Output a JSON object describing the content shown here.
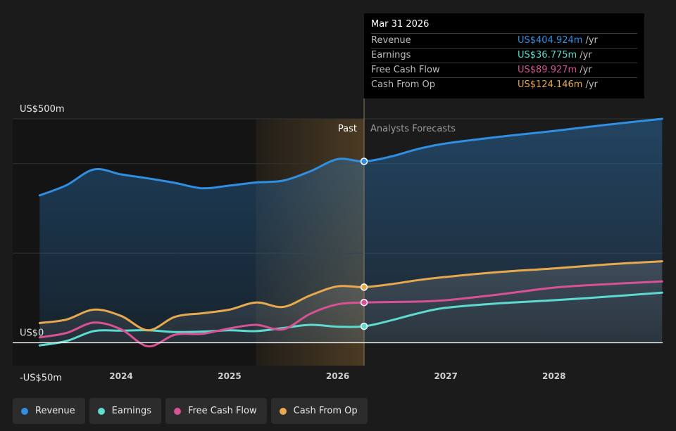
{
  "chart_data": {
    "type": "area",
    "x_unit": "date",
    "ylim": [
      -50,
      500
    ],
    "xlim": [
      "2023-04-01",
      "2028-12-31"
    ],
    "y_ticks": [
      {
        "value": 500,
        "label": "US$500m"
      },
      {
        "value": 0,
        "label": "US$0"
      },
      {
        "value": -50,
        "label": "-US$50m"
      }
    ],
    "x_ticks": [
      {
        "date": "2024-01-01",
        "label": "2024"
      },
      {
        "date": "2025-01-01",
        "label": "2025"
      },
      {
        "date": "2026-01-01",
        "label": "2026"
      },
      {
        "date": "2027-01-01",
        "label": "2027"
      },
      {
        "date": "2028-01-01",
        "label": "2028"
      }
    ],
    "past_label": "Past",
    "forecast_label": "Analysts Forecasts",
    "divider_date": "2026-03-31",
    "highlight_start": "2025-03-31",
    "series": [
      {
        "name": "Revenue",
        "color": "#2f8fe3",
        "points": [
          [
            "2023-04-01",
            329
          ],
          [
            "2023-07-01",
            352
          ],
          [
            "2023-10-01",
            387
          ],
          [
            "2024-01-01",
            376
          ],
          [
            "2024-04-01",
            367
          ],
          [
            "2024-07-01",
            357
          ],
          [
            "2024-10-01",
            345
          ],
          [
            "2025-01-01",
            351
          ],
          [
            "2025-04-01",
            358
          ],
          [
            "2025-07-01",
            362
          ],
          [
            "2025-10-01",
            383
          ],
          [
            "2026-01-01",
            410
          ],
          [
            "2026-03-31",
            405
          ],
          [
            "2026-07-01",
            416
          ],
          [
            "2026-10-01",
            433
          ],
          [
            "2027-01-01",
            445
          ],
          [
            "2027-07-01",
            460
          ],
          [
            "2028-01-01",
            473
          ],
          [
            "2028-07-01",
            487
          ],
          [
            "2028-12-31",
            500
          ]
        ]
      },
      {
        "name": "Earnings",
        "color": "#5ddbd0",
        "points": [
          [
            "2023-04-01",
            -6
          ],
          [
            "2023-07-01",
            4
          ],
          [
            "2023-10-01",
            26
          ],
          [
            "2024-01-01",
            27
          ],
          [
            "2024-04-01",
            28
          ],
          [
            "2024-07-01",
            24
          ],
          [
            "2024-10-01",
            25
          ],
          [
            "2025-01-01",
            28
          ],
          [
            "2025-04-01",
            26
          ],
          [
            "2025-07-01",
            33
          ],
          [
            "2025-10-01",
            40
          ],
          [
            "2026-01-01",
            36
          ],
          [
            "2026-03-31",
            36.775
          ],
          [
            "2026-07-01",
            50
          ],
          [
            "2026-10-01",
            66
          ],
          [
            "2027-01-01",
            78
          ],
          [
            "2027-07-01",
            88
          ],
          [
            "2028-01-01",
            95
          ],
          [
            "2028-07-01",
            103
          ],
          [
            "2028-12-31",
            112
          ]
        ]
      },
      {
        "name": "Free Cash Flow",
        "color": "#d95195",
        "points": [
          [
            "2023-04-01",
            12
          ],
          [
            "2023-07-01",
            22
          ],
          [
            "2023-10-01",
            45
          ],
          [
            "2024-01-01",
            30
          ],
          [
            "2024-04-01",
            -8
          ],
          [
            "2024-07-01",
            18
          ],
          [
            "2024-10-01",
            20
          ],
          [
            "2025-01-01",
            32
          ],
          [
            "2025-04-01",
            40
          ],
          [
            "2025-07-01",
            30
          ],
          [
            "2025-10-01",
            65
          ],
          [
            "2026-01-01",
            86
          ],
          [
            "2026-03-31",
            89.927
          ],
          [
            "2026-07-01",
            91
          ],
          [
            "2026-10-01",
            92
          ],
          [
            "2027-01-01",
            95
          ],
          [
            "2027-07-01",
            108
          ],
          [
            "2028-01-01",
            123
          ],
          [
            "2028-07-01",
            131
          ],
          [
            "2028-12-31",
            137
          ]
        ]
      },
      {
        "name": "Cash From Op",
        "color": "#e8a94e",
        "points": [
          [
            "2023-04-01",
            44
          ],
          [
            "2023-07-01",
            52
          ],
          [
            "2023-10-01",
            74
          ],
          [
            "2024-01-01",
            60
          ],
          [
            "2024-04-01",
            28
          ],
          [
            "2024-07-01",
            58
          ],
          [
            "2024-10-01",
            66
          ],
          [
            "2025-01-01",
            74
          ],
          [
            "2025-04-01",
            90
          ],
          [
            "2025-07-01",
            80
          ],
          [
            "2025-10-01",
            106
          ],
          [
            "2026-01-01",
            126
          ],
          [
            "2026-03-31",
            124.146
          ],
          [
            "2026-07-01",
            131
          ],
          [
            "2026-10-01",
            140
          ],
          [
            "2027-01-01",
            147
          ],
          [
            "2027-07-01",
            158
          ],
          [
            "2028-01-01",
            166
          ],
          [
            "2028-07-01",
            175
          ],
          [
            "2028-12-31",
            182
          ]
        ]
      }
    ]
  },
  "tooltip": {
    "date": "Mar 31 2026",
    "unit": "/yr",
    "rows": [
      {
        "name": "Revenue",
        "value": "US$404.924m",
        "color": "#2f8fe3"
      },
      {
        "name": "Earnings",
        "value": "US$36.775m",
        "color": "#5ddbd0"
      },
      {
        "name": "Free Cash Flow",
        "value": "US$89.927m",
        "color": "#d95195"
      },
      {
        "name": "Cash From Op",
        "value": "US$124.146m",
        "color": "#e8a94e"
      }
    ]
  },
  "legend": [
    {
      "label": "Revenue",
      "color": "#2f8fe3"
    },
    {
      "label": "Earnings",
      "color": "#5ddbd0"
    },
    {
      "label": "Free Cash Flow",
      "color": "#d95195"
    },
    {
      "label": "Cash From Op",
      "color": "#e8a94e"
    }
  ]
}
